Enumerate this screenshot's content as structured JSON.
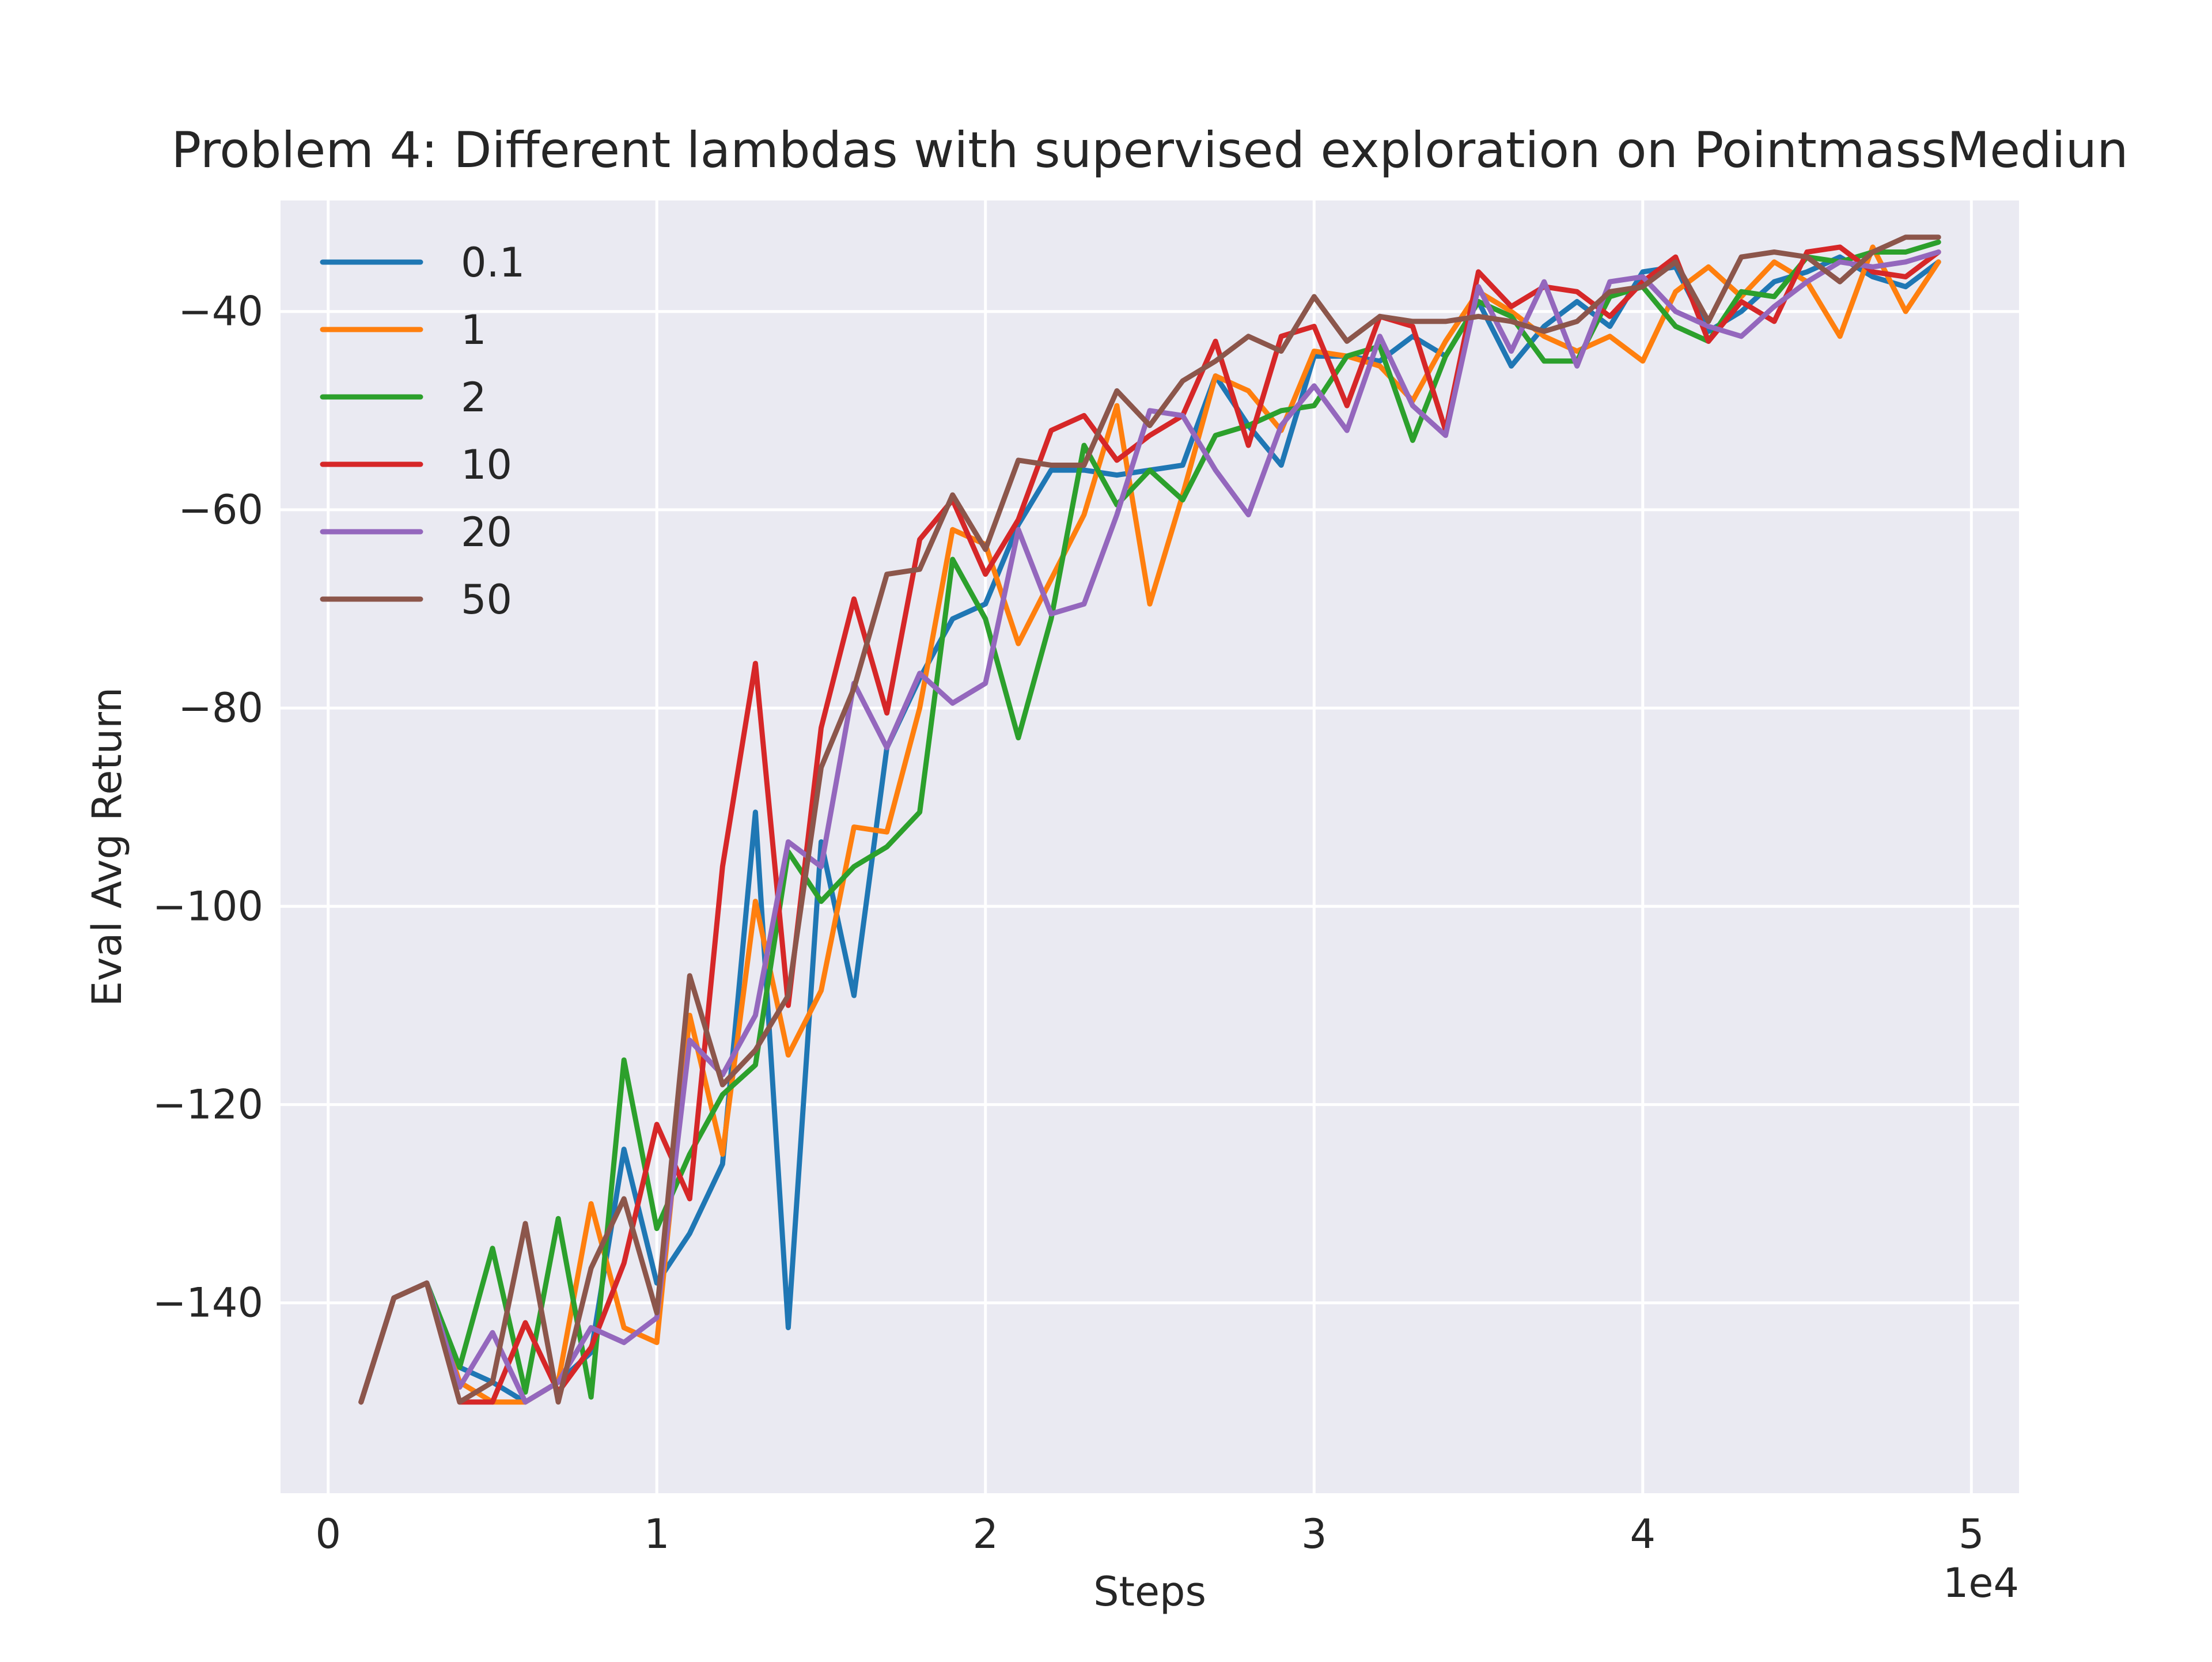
{
  "chart_data": {
    "type": "line",
    "title": "Problem 4: Different lambdas with supervised exploration on PointmassMediun",
    "xlabel": "Steps",
    "ylabel": "Eval Avg Return",
    "x_offset_label": "1e4",
    "xlim": [
      -1.45,
      51.45
    ],
    "ylim": [
      -159.2,
      -28.8
    ],
    "x_ticks": [
      0,
      10,
      20,
      30,
      40,
      50
    ],
    "x_tick_labels": [
      "0",
      "1",
      "2",
      "3",
      "4",
      "5"
    ],
    "y_ticks": [
      -140,
      -120,
      -100,
      -80,
      -60,
      -40
    ],
    "y_tick_labels": [
      "−140",
      "−120",
      "−100",
      "−80",
      "−60",
      "−40"
    ],
    "x_scale_note": "x values in thousands of steps (axis ticks shown in units of 1e4)",
    "grid": true,
    "background": "#eaeaf2",
    "legend_position": "upper left",
    "x": [
      1,
      2,
      3,
      4,
      5,
      6,
      7,
      8,
      9,
      10,
      11,
      12,
      13,
      14,
      15,
      16,
      17,
      18,
      19,
      20,
      21,
      22,
      23,
      24,
      25,
      26,
      27,
      28,
      29,
      30,
      31,
      32,
      33,
      34,
      35,
      36,
      37,
      38,
      39,
      40,
      41,
      42,
      43,
      44,
      45,
      46,
      47,
      48,
      49
    ],
    "series": [
      {
        "name": "0.1",
        "color": "#1f77b4",
        "values": [
          -150,
          -139.5,
          -138,
          -146.5,
          -148,
          -150,
          -148,
          -145,
          -124.5,
          -138,
          -133,
          -126,
          -90.5,
          -142.5,
          -93.5,
          -109,
          -84,
          -77,
          -71,
          -69.5,
          -61.5,
          -56,
          -56,
          -56.5,
          -56,
          -55.5,
          -46.5,
          -51.5,
          -55.5,
          -44.5,
          -44.5,
          -45,
          -42.5,
          -44.5,
          -39,
          -45.5,
          -41.5,
          -39,
          -41.5,
          -36,
          -35.5,
          -42,
          -40,
          -37,
          -36,
          -34.5,
          -36.5,
          -37.5,
          -35
        ]
      },
      {
        "name": "1",
        "color": "#ff7f0e",
        "values": [
          -150,
          -139.5,
          -138,
          -148,
          -150,
          -150,
          -148,
          -130,
          -142.5,
          -144,
          -111,
          -125,
          -99.5,
          -115,
          -108.5,
          -92,
          -92.5,
          -80,
          -62,
          -63.5,
          -73.5,
          -67,
          -60.5,
          -49.5,
          -69.5,
          -58.5,
          -46.5,
          -48,
          -52,
          -44,
          -44.5,
          -45.5,
          -49,
          -43,
          -38,
          -40,
          -42.5,
          -44,
          -42.5,
          -45,
          -38,
          -35.5,
          -38.5,
          -35,
          -37,
          -42.5,
          -33.5,
          -40,
          -35
        ]
      },
      {
        "name": "2",
        "color": "#2ca02c",
        "values": [
          -150,
          -139.5,
          -138,
          -146.5,
          -134.5,
          -149,
          -131.5,
          -149.5,
          -115.5,
          -132.5,
          -125,
          -119,
          -116,
          -94.5,
          -99.5,
          -96,
          -94,
          -90.5,
          -65,
          -71,
          -83,
          -71,
          -53.5,
          -59.5,
          -56,
          -59,
          -52.5,
          -51.5,
          -50,
          -49.5,
          -44.5,
          -43.5,
          -53,
          -44.5,
          -39,
          -40.5,
          -45,
          -45,
          -38.5,
          -37.5,
          -41.5,
          -43,
          -38,
          -38.5,
          -34.5,
          -35,
          -34,
          -34,
          -33
        ]
      },
      {
        "name": "10",
        "color": "#d62728",
        "values": [
          -150,
          -139.5,
          -138,
          -150,
          -150,
          -142,
          -149,
          -144.5,
          -136,
          -122,
          -129.5,
          -96,
          -75.5,
          -110,
          -82,
          -69,
          -80.5,
          -63,
          -59,
          -66.5,
          -61,
          -52,
          -50.5,
          -55,
          -52.5,
          -50.5,
          -43,
          -53.5,
          -42.5,
          -41.5,
          -49.5,
          -40.5,
          -41.5,
          -52,
          -36,
          -39.5,
          -37.5,
          -38,
          -40.5,
          -37,
          -34.5,
          -43,
          -39,
          -41,
          -34,
          -33.5,
          -36,
          -36.5,
          -34
        ]
      },
      {
        "name": "20",
        "color": "#9467bd",
        "values": [
          -150,
          -139.5,
          -138,
          -148.5,
          -143,
          -150,
          -148,
          -142.5,
          -144,
          -141.5,
          -113.5,
          -117,
          -111,
          -93.5,
          -96,
          -77.5,
          -84,
          -76.5,
          -79.5,
          -77.5,
          -62,
          -70.5,
          -69.5,
          -60.5,
          -50,
          -50.5,
          -56,
          -60.5,
          -51.5,
          -47.5,
          -52,
          -42.5,
          -49.5,
          -52.5,
          -37.5,
          -44,
          -37,
          -45.5,
          -37,
          -36.5,
          -40,
          -41.5,
          -42.5,
          -39.5,
          -37,
          -35,
          -35.5,
          -35,
          -34
        ]
      },
      {
        "name": "50",
        "color": "#8c564b",
        "values": [
          -150,
          -139.5,
          -138,
          -150,
          -148,
          -132,
          -150,
          -136.5,
          -129.5,
          -141,
          -107,
          -118,
          -114.5,
          -109,
          -86,
          -78,
          -66.5,
          -66,
          -58.5,
          -64,
          -55,
          -55.5,
          -55.5,
          -48,
          -51.5,
          -47,
          -45,
          -42.5,
          -44,
          -38.5,
          -43,
          -40.5,
          -41,
          -41,
          -40.5,
          -41,
          -42,
          -41,
          -38,
          -37.5,
          -35,
          -41,
          -34.5,
          -34,
          -34.5,
          -37,
          -34,
          -32.5,
          -32.5
        ]
      }
    ]
  }
}
